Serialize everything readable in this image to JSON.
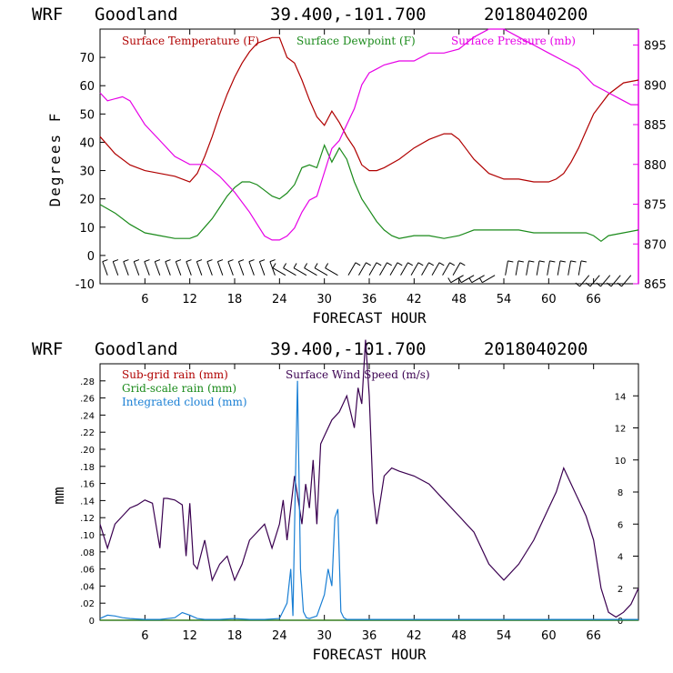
{
  "chart_data": [
    {
      "type": "line",
      "header": {
        "model": "WRF",
        "station": "Goodland",
        "coords": "39.400,-101.700",
        "init": "2018040200"
      },
      "xlabel": "FORECAST HOUR",
      "xlim": [
        0,
        72
      ],
      "xticks": [
        6,
        12,
        18,
        24,
        30,
        36,
        42,
        48,
        54,
        60,
        66
      ],
      "ylabel_left": "Degrees F",
      "ylim_left": [
        -10,
        80
      ],
      "yticks_left": [
        -10,
        0,
        10,
        20,
        30,
        40,
        50,
        60,
        70
      ],
      "ylim_right": [
        865,
        897
      ],
      "yticks_right": [
        865,
        870,
        875,
        880,
        885,
        890,
        895
      ],
      "colors": {
        "temp": "#b00000",
        "dew": "#1a8a1a",
        "press": "#e600e6"
      },
      "legend": {
        "temp": "Surface Temperature (F)",
        "dew": "Surface Dewpoint (F)",
        "press": "Surface Pressure (mb)"
      },
      "series": [
        {
          "name": "Surface Temperature (F)",
          "axis": "left",
          "x": [
            0,
            2,
            4,
            6,
            8,
            10,
            12,
            13,
            14,
            15,
            16,
            17,
            18,
            19,
            20,
            21,
            22,
            23,
            24,
            25,
            26,
            27,
            28,
            29,
            30,
            31,
            32,
            33,
            34,
            35,
            36,
            37,
            38,
            40,
            42,
            44,
            46,
            47,
            48,
            50,
            52,
            54,
            56,
            58,
            60,
            61,
            62,
            63,
            64,
            65,
            66,
            68,
            70,
            72
          ],
          "values": [
            42,
            36,
            32,
            30,
            29,
            28,
            26,
            29,
            35,
            42,
            50,
            57,
            63,
            68,
            72,
            75,
            76,
            77,
            77,
            70,
            68,
            62,
            55,
            49,
            46,
            51,
            47,
            42,
            38,
            32,
            30,
            30,
            31,
            34,
            38,
            41,
            43,
            43,
            41,
            34,
            29,
            27,
            27,
            26,
            26,
            27,
            29,
            33,
            38,
            44,
            50,
            57,
            61,
            62
          ]
        },
        {
          "name": "Surface Dewpoint (F)",
          "axis": "left",
          "x": [
            0,
            2,
            4,
            6,
            8,
            10,
            12,
            13,
            14,
            15,
            16,
            17,
            18,
            19,
            20,
            21,
            22,
            23,
            24,
            25,
            26,
            27,
            28,
            29,
            30,
            31,
            32,
            33,
            34,
            35,
            36,
            37,
            38,
            39,
            40,
            42,
            44,
            46,
            48,
            50,
            52,
            54,
            56,
            58,
            60,
            62,
            64,
            65,
            66,
            67,
            68,
            70,
            72
          ],
          "values": [
            18,
            15,
            11,
            8,
            7,
            6,
            6,
            7,
            10,
            13,
            17,
            21,
            24,
            26,
            26,
            25,
            23,
            21,
            20,
            22,
            25,
            31,
            32,
            31,
            39,
            33,
            38,
            34,
            26,
            20,
            16,
            12,
            9,
            7,
            6,
            7,
            7,
            6,
            7,
            9,
            9,
            9,
            9,
            8,
            8,
            8,
            8,
            8,
            7,
            5,
            7,
            8,
            9
          ]
        },
        {
          "name": "Surface Pressure (mb)",
          "axis": "right",
          "x": [
            0,
            1,
            3,
            4,
            6,
            8,
            10,
            12,
            14,
            16,
            18,
            20,
            22,
            23,
            24,
            25,
            26,
            27,
            28,
            29,
            30,
            31,
            32,
            33,
            34,
            35,
            36,
            37,
            38,
            40,
            42,
            44,
            46,
            48,
            50,
            52,
            54,
            56,
            58,
            60,
            62,
            64,
            66,
            68,
            70,
            71,
            72
          ],
          "values": [
            889,
            888,
            888.5,
            888,
            885,
            883,
            881,
            880,
            880,
            878.5,
            876.5,
            874,
            871,
            870.5,
            870.5,
            871,
            872,
            874,
            875.5,
            876,
            879,
            882,
            883,
            885,
            887,
            890,
            891.5,
            892,
            892.5,
            893,
            893,
            894,
            894,
            894.5,
            896,
            897,
            897,
            896,
            895,
            894,
            893,
            892,
            890,
            889,
            888,
            887.5,
            887.5
          ]
        }
      ],
      "wind_barbs_note": "row of wind barbs along the Degrees F = 0 to -10 band"
    },
    {
      "type": "line",
      "header": {
        "model": "WRF",
        "station": "Goodland",
        "coords": "39.400,-101.700",
        "init": "2018040200"
      },
      "xlabel": "FORECAST HOUR",
      "xlim": [
        0,
        72
      ],
      "xticks": [
        6,
        12,
        18,
        24,
        30,
        36,
        42,
        48,
        54,
        60,
        66
      ],
      "ylabel_left": "mm",
      "ylim_left": [
        0,
        0.3
      ],
      "yticks_left": [
        0,
        0.02,
        0.04,
        0.06,
        0.08,
        0.1,
        0.12,
        0.14,
        0.16,
        0.18,
        0.2,
        0.22,
        0.24,
        0.26,
        0.28
      ],
      "yticklabels_left": [
        "0",
        ".02",
        ".04",
        ".06",
        ".08",
        ".10",
        ".12",
        ".14",
        ".16",
        ".18",
        ".20",
        ".22",
        ".24",
        ".26",
        ".28"
      ],
      "ylim_right": [
        0,
        16
      ],
      "yticks_right": [
        0,
        2,
        4,
        6,
        8,
        10,
        12,
        14
      ],
      "colors": {
        "subgrid": "#b00000",
        "gridscale": "#1a8a1a",
        "cloud": "#1a7fd4",
        "wind": "#3a0050"
      },
      "legend": {
        "subgrid": "Sub-grid rain (mm)",
        "gridscale": "Grid-scale rain (mm)",
        "cloud": "Integrated cloud (mm)",
        "wind": "Surface Wind Speed (m/s)"
      },
      "series": [
        {
          "name": "Surface Wind Speed (m/s)",
          "axis": "right",
          "x": [
            0,
            1,
            2,
            3,
            4,
            5,
            6,
            7,
            8,
            8.5,
            9,
            10,
            11,
            11.5,
            12,
            12.5,
            13,
            14,
            15,
            16,
            17,
            18,
            19,
            20,
            21,
            22,
            23,
            24,
            24.5,
            25,
            26,
            27,
            27.5,
            28,
            28.5,
            29,
            29.5,
            30,
            31,
            32,
            33,
            34,
            34.5,
            35,
            35.5,
            36,
            36.5,
            37,
            38,
            39,
            40,
            42,
            44,
            46,
            48,
            50,
            52,
            54,
            56,
            58,
            60,
            61,
            62,
            63,
            64,
            65,
            66,
            67,
            68,
            69,
            70,
            71,
            72
          ],
          "values": [
            6,
            4.5,
            6,
            6.5,
            7,
            7.2,
            7.5,
            7.3,
            4.5,
            7.6,
            7.6,
            7.5,
            7.2,
            4,
            7.3,
            3.5,
            3.2,
            5,
            2.5,
            3.5,
            4,
            2.5,
            3.5,
            5,
            5.5,
            6,
            4.5,
            6,
            7.5,
            5,
            9,
            6,
            8.5,
            7,
            10,
            6,
            11,
            11.5,
            12.5,
            13,
            14,
            12,
            14.5,
            13.5,
            17.5,
            14,
            8,
            6,
            9,
            9.5,
            9.3,
            9,
            8.5,
            7.5,
            6.5,
            5.5,
            3.5,
            2.5,
            3.5,
            5,
            7,
            8,
            9.5,
            8.5,
            7.5,
            6.5,
            5,
            2,
            0.5,
            0.2,
            0.5,
            1,
            2
          ]
        },
        {
          "name": "Integrated cloud (mm)",
          "axis": "left",
          "x": [
            0,
            1,
            2,
            3,
            4,
            6,
            8,
            10,
            11,
            12,
            13,
            14,
            16,
            18,
            20,
            22,
            24,
            25,
            25.5,
            25.8,
            26.1,
            26.4,
            26.8,
            27.2,
            27.6,
            28,
            29,
            30,
            30.5,
            31,
            31.4,
            31.8,
            32.2,
            32.6,
            33,
            34,
            36,
            40,
            48,
            56,
            64,
            72
          ],
          "values": [
            0.002,
            0.006,
            0.005,
            0.003,
            0.002,
            0.001,
            0.001,
            0.003,
            0.009,
            0.006,
            0.002,
            0.001,
            0.001,
            0.002,
            0.001,
            0.001,
            0.002,
            0.02,
            0.06,
            0.005,
            0.15,
            0.28,
            0.06,
            0.01,
            0.003,
            0.002,
            0.005,
            0.03,
            0.06,
            0.04,
            0.12,
            0.13,
            0.01,
            0.003,
            0.001,
            0.001,
            0.001,
            0.001,
            0.001,
            0.001,
            0.001,
            0.001
          ]
        },
        {
          "name": "Sub-grid rain (mm)",
          "axis": "left",
          "x": [
            0,
            72
          ],
          "values": [
            0,
            0
          ]
        },
        {
          "name": "Grid-scale rain (mm)",
          "axis": "left",
          "x": [
            0,
            72
          ],
          "values": [
            0,
            0
          ]
        }
      ]
    }
  ]
}
